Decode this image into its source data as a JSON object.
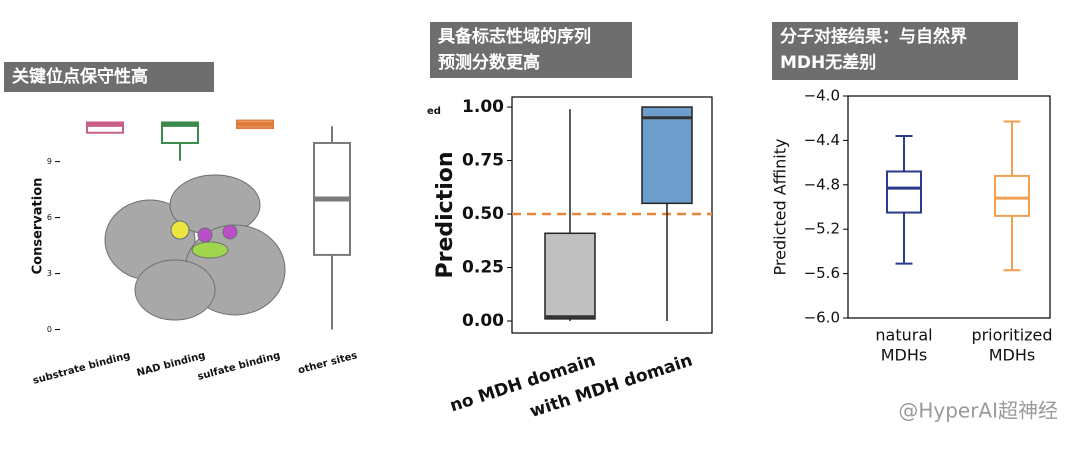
{
  "chart_data": [
    {
      "type": "box",
      "title": [
        "关键位点保守性高"
      ],
      "y_label": "Conservation",
      "box_style": "outline",
      "categories": [
        [
          "substrate binding"
        ],
        [
          "NAD binding"
        ],
        [
          "sulfate binding"
        ],
        [
          "other sites"
        ]
      ],
      "colors": [
        "#c8608a",
        "#3a8a4a",
        "#e07b3c",
        "#7a7a7a"
      ],
      "boxes": [
        {
          "min": 10.55,
          "q1": 10.55,
          "median": 11.0,
          "q3": 11.1,
          "max": 11.1
        },
        {
          "min": 9.05,
          "q1": 10.0,
          "median": 11.0,
          "q3": 11.1,
          "max": 11.1
        },
        {
          "min": 10.8,
          "q1": 10.8,
          "median": 11.0,
          "q3": 11.2,
          "max": 11.2
        },
        {
          "min": 0,
          "q1": 4.0,
          "median": 7.0,
          "q3": 10.0,
          "max": 10.9
        }
      ],
      "ylim": [
        -0.4,
        11.5
      ],
      "yticks": [
        0,
        3,
        6,
        9
      ]
    },
    {
      "type": "box",
      "title": [
        "具备标志性域的序列",
        "预测分数更高"
      ],
      "y_label": "Prediction",
      "box_style": "filled",
      "fragment": "ed",
      "categories": [
        [
          "no MDH domain"
        ],
        [
          "with MDH domain"
        ]
      ],
      "colors": [
        "#c0c0c0",
        "#6d9ecb"
      ],
      "boxes": [
        {
          "min": 0.0,
          "q1": 0.01,
          "median": 0.02,
          "q3": 0.41,
          "max": 0.99
        },
        {
          "min": 0.0,
          "q1": 0.55,
          "median": 0.95,
          "q3": 1.0,
          "max": 1.0
        }
      ],
      "threshold": 0.5,
      "threshold_color": "#e8863a",
      "ylim": [
        -0.056,
        1.047
      ],
      "yticks": [
        {
          "value": 0,
          "label": "0.00"
        },
        {
          "value": 0.25,
          "label": "0.25"
        },
        {
          "value": 0.5,
          "label": "0.50"
        },
        {
          "value": 0.75,
          "label": "0.75"
        },
        {
          "value": 1,
          "label": "1.00"
        }
      ]
    },
    {
      "type": "box",
      "title": [
        "分子对接结果：与自然界",
        "MDH无差别"
      ],
      "y_label": "Predicted Affinity",
      "box_style": "outline",
      "categories": [
        [
          "natural",
          "MDHs"
        ],
        [
          "prioritized",
          "MDHs"
        ]
      ],
      "colors": [
        "#2b3a8c",
        "#f0a050"
      ],
      "boxes": [
        {
          "min": -5.51,
          "q1": -5.05,
          "median": -4.83,
          "q3": -4.68,
          "max": -4.36
        },
        {
          "min": -5.57,
          "q1": -5.08,
          "median": -4.92,
          "q3": -4.72,
          "max": -4.23
        }
      ],
      "ylim": [
        -6.0,
        -4.0
      ],
      "yticks": [
        {
          "value": -4.0,
          "label": "−4.0"
        },
        {
          "value": -4.4,
          "label": "−4.4"
        },
        {
          "value": -4.8,
          "label": "−4.8"
        },
        {
          "value": -5.2,
          "label": "−5.2"
        },
        {
          "value": -5.6,
          "label": "−5.6"
        },
        {
          "value": -6.0,
          "label": "−6.0"
        }
      ]
    }
  ],
  "watermark": "@HyperAI超神经"
}
